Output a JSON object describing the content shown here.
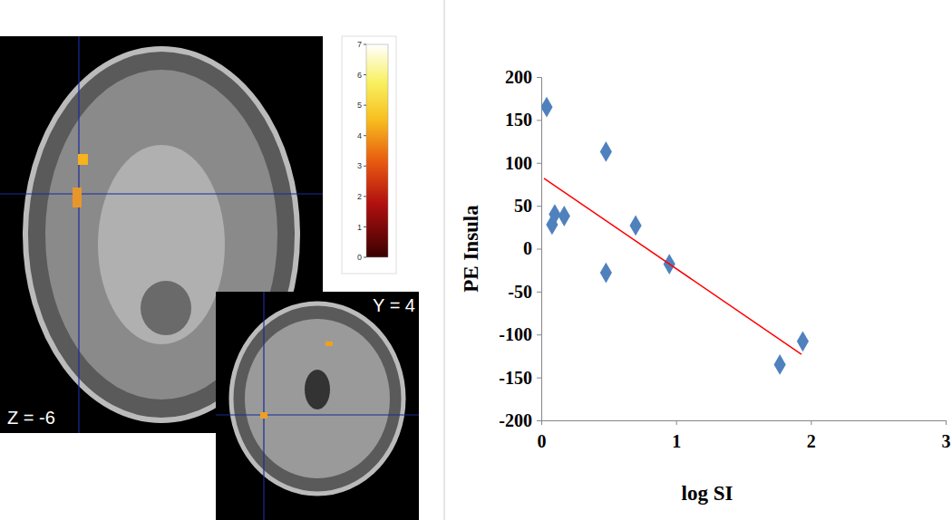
{
  "chart_data": [
    {
      "type": "image",
      "annotations": [
        "Z = -6",
        "Y = 4"
      ],
      "colorbar": {
        "range": [
          0,
          7
        ],
        "ticks": [
          0,
          1,
          2,
          3,
          4,
          5,
          6,
          7
        ]
      }
    },
    {
      "type": "scatter",
      "x_label": "log SI",
      "y_label": "PE Insula",
      "x": [
        0.04,
        0.08,
        0.1,
        0.17,
        0.48,
        0.48,
        0.7,
        0.95,
        1.77,
        1.94
      ],
      "values": [
        165,
        28,
        40,
        38,
        113,
        -28,
        27,
        -18,
        -135,
        -108
      ],
      "color": "#4f81bd",
      "marker": "diamond",
      "trendline": {
        "x": [
          0.02,
          1.93
        ],
        "values": [
          82,
          -123
        ],
        "color": "#ff0000"
      },
      "xlim": [
        0,
        3
      ],
      "ylim": [
        -200,
        200
      ],
      "xticks": [
        0,
        1,
        2,
        3
      ],
      "yticks": [
        -200,
        -150,
        -100,
        -50,
        0,
        50,
        100,
        150,
        200
      ]
    }
  ]
}
